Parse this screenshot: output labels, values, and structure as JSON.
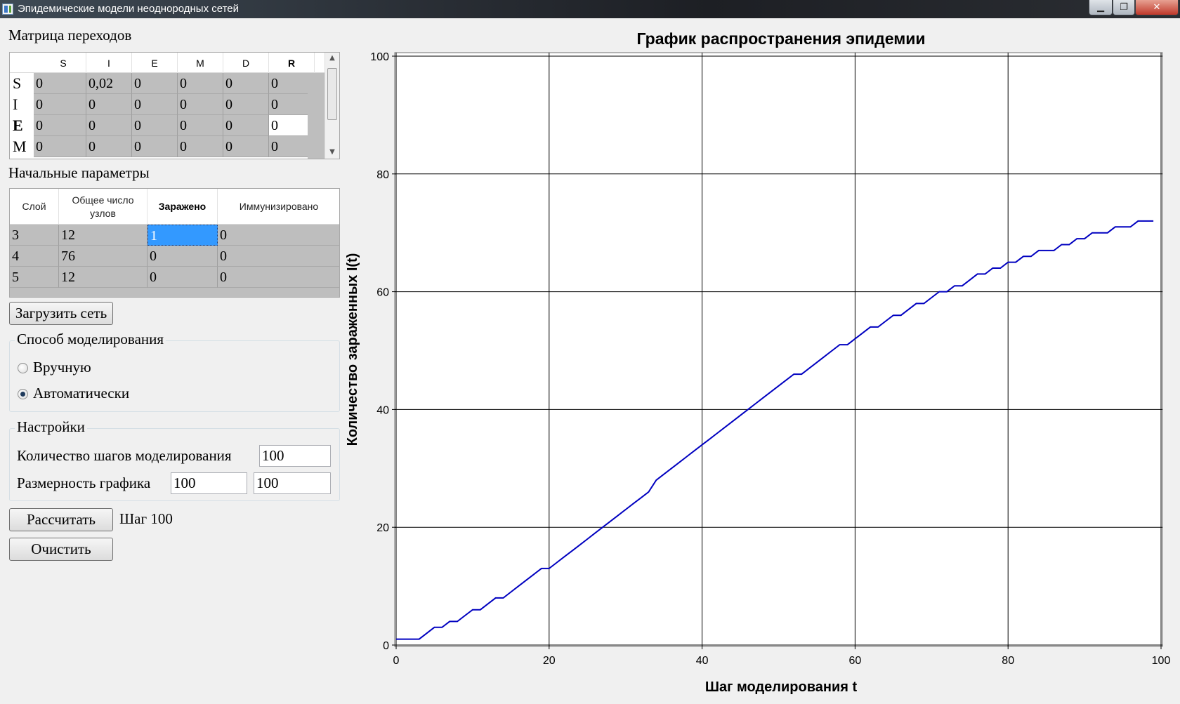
{
  "window": {
    "title": "Эпидемические модели неоднородных сетей",
    "controls": [
      "▁",
      "❐",
      "✕"
    ]
  },
  "matrix": {
    "label": "Матрица переходов",
    "columns": [
      "S",
      "I",
      "E",
      "M",
      "D",
      "R"
    ],
    "rows": [
      {
        "name": "S",
        "values": [
          "0",
          "0,02",
          "0",
          "0",
          "0",
          "0"
        ]
      },
      {
        "name": "I",
        "values": [
          "0",
          "0",
          "0",
          "0",
          "0",
          "0"
        ]
      },
      {
        "name": "E",
        "values": [
          "0",
          "0",
          "0",
          "0",
          "0",
          "0"
        ]
      },
      {
        "name": "M",
        "values": [
          "0",
          "0",
          "0",
          "0",
          "0",
          "0"
        ]
      }
    ]
  },
  "params": {
    "label": "Начальные параметры",
    "columns": [
      "Слой",
      "Общее число узлов",
      "Заражено",
      "Иммунизировано"
    ],
    "rows": [
      [
        "3",
        "12",
        "1",
        "0"
      ],
      [
        "4",
        "76",
        "0",
        "0"
      ],
      [
        "5",
        "12",
        "0",
        "0"
      ]
    ]
  },
  "load_button": "Загрузить сеть",
  "mode": {
    "label": "Способ моделирования",
    "manual": "Вручную",
    "auto": "Автоматически",
    "selected": "auto"
  },
  "settings": {
    "label": "Настройки",
    "steps_label": "Количество шагов моделирования",
    "steps_value": "100",
    "size_label": "Размерность графика",
    "size_x": "100",
    "size_y": "100"
  },
  "calc_button": "Рассчитать",
  "step_status": "Шаг 100",
  "clear_button": "Очистить",
  "chart_data": {
    "type": "line",
    "title": "График распространения эпидемии",
    "xlabel": "Шаг моделирования t",
    "ylabel": "Количество зараженных I(t)",
    "xlim": [
      0,
      100
    ],
    "ylim": [
      0,
      100
    ],
    "xticks": [
      0,
      20,
      40,
      60,
      80,
      100
    ],
    "yticks": [
      0,
      20,
      40,
      60,
      80,
      100
    ],
    "grid": true,
    "line_color": "#0000c0",
    "x": [
      0,
      1,
      2,
      3,
      4,
      5,
      6,
      7,
      8,
      9,
      10,
      11,
      12,
      13,
      14,
      15,
      16,
      17,
      18,
      19,
      20,
      21,
      22,
      23,
      24,
      25,
      26,
      27,
      28,
      29,
      30,
      31,
      32,
      33,
      34,
      35,
      36,
      37,
      38,
      39,
      40,
      41,
      42,
      43,
      44,
      45,
      46,
      47,
      48,
      49,
      50,
      51,
      52,
      53,
      54,
      55,
      56,
      57,
      58,
      59,
      60,
      61,
      62,
      63,
      64,
      65,
      66,
      67,
      68,
      69,
      70,
      71,
      72,
      73,
      74,
      75,
      76,
      77,
      78,
      79,
      80,
      81,
      82,
      83,
      84,
      85,
      86,
      87,
      88,
      89,
      90,
      91,
      92,
      93,
      94,
      95,
      96,
      97,
      98,
      99
    ],
    "y": [
      1,
      1,
      1,
      1,
      2,
      3,
      3,
      4,
      4,
      5,
      6,
      6,
      7,
      8,
      8,
      9,
      10,
      11,
      12,
      13,
      13,
      14,
      15,
      16,
      17,
      18,
      19,
      20,
      21,
      22,
      23,
      24,
      25,
      26,
      28,
      29,
      30,
      31,
      32,
      33,
      34,
      35,
      36,
      37,
      38,
      39,
      40,
      41,
      42,
      43,
      44,
      45,
      46,
      46,
      47,
      48,
      49,
      50,
      51,
      51,
      52,
      53,
      54,
      54,
      55,
      56,
      56,
      57,
      58,
      58,
      59,
      60,
      60,
      61,
      61,
      62,
      63,
      63,
      64,
      64,
      65,
      65,
      66,
      66,
      67,
      67,
      67,
      68,
      68,
      69,
      69,
      70,
      70,
      70,
      71,
      71,
      71,
      72,
      72,
      72
    ]
  }
}
